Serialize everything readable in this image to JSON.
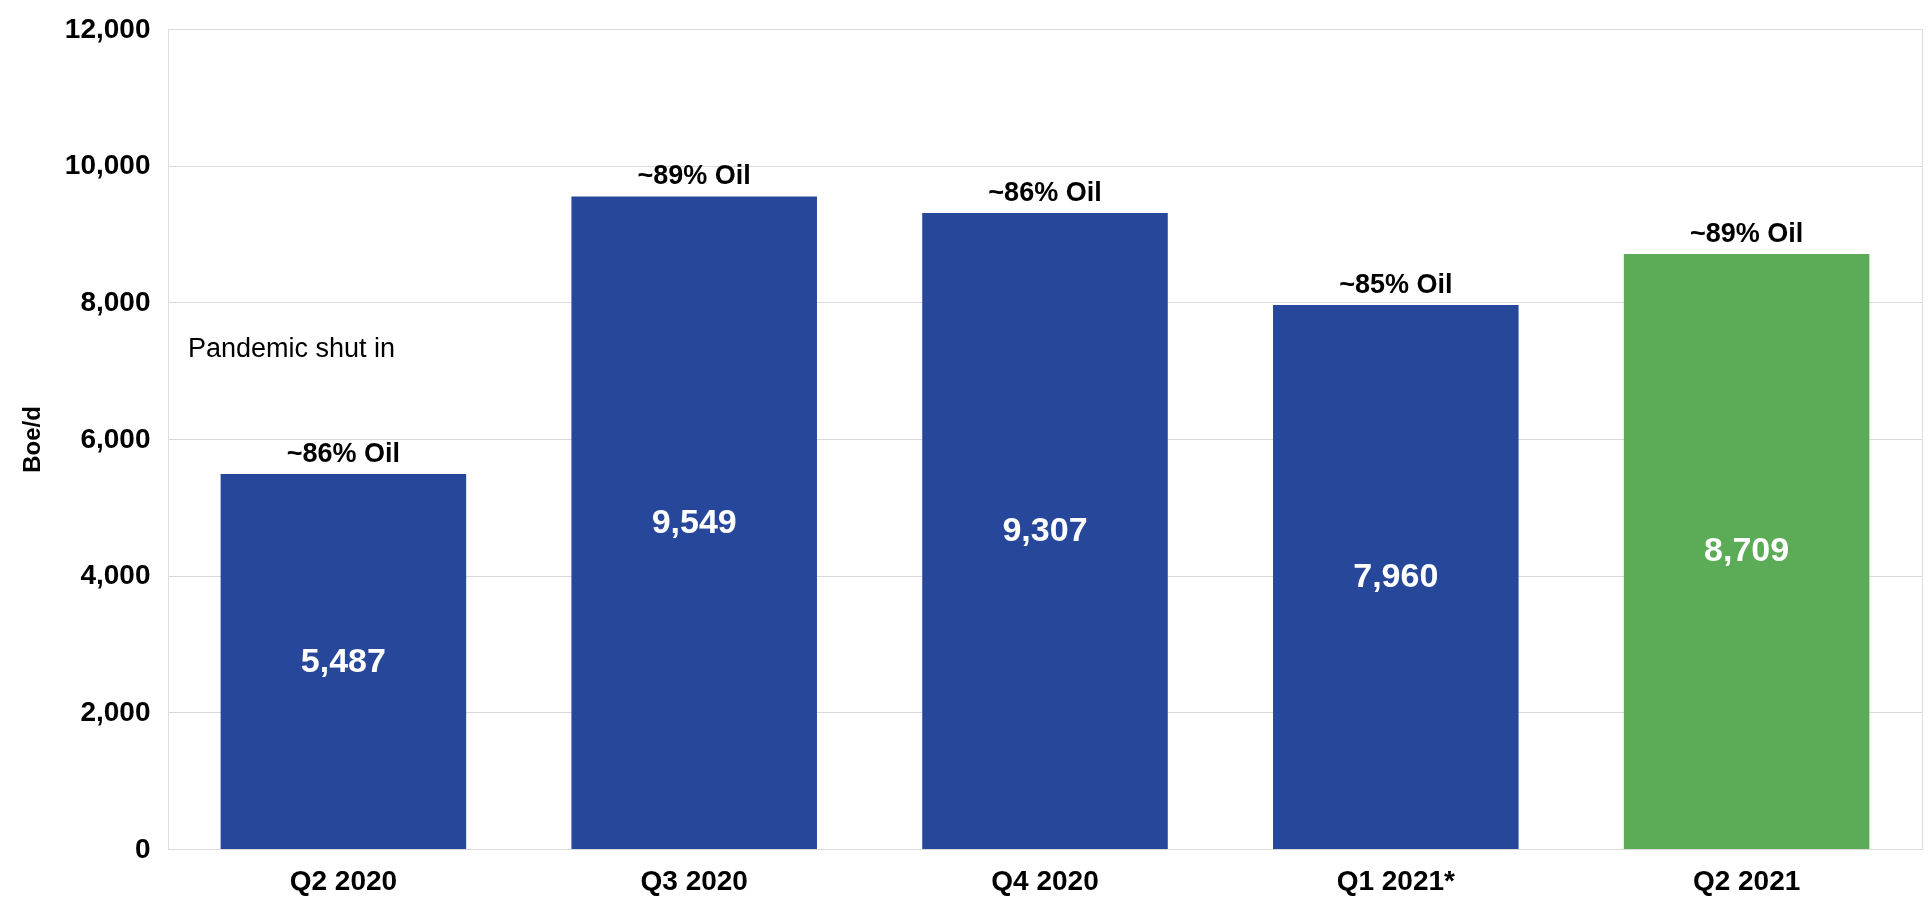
{
  "chart_data": {
    "type": "bar",
    "ylabel": "Boe/d",
    "categories": [
      "Q2 2020",
      "Q3 2020",
      "Q4 2020",
      "Q1 2021*",
      "Q2 2021"
    ],
    "values": [
      5487,
      9549,
      9307,
      7960,
      8709
    ],
    "colors": [
      "#27479a",
      "#27479a",
      "#27479a",
      "#27479a",
      "#5bab57"
    ],
    "value_labels": [
      "5,487",
      "9,549",
      "9,307",
      "7,960",
      "8,709"
    ],
    "ylim": [
      0,
      12000
    ],
    "yticks": [
      {
        "value": 0,
        "label": "0"
      },
      {
        "value": 2000,
        "label": "2,000"
      },
      {
        "value": 4000,
        "label": "4,000"
      },
      {
        "value": 6000,
        "label": "6,000"
      },
      {
        "value": 8000,
        "label": "8,000"
      },
      {
        "value": 10000,
        "label": "10,000"
      },
      {
        "value": 12000,
        "label": "12,000"
      }
    ],
    "grid": "y",
    "annotations": [
      {
        "text": "~86% Oil",
        "x": "Q2 2020",
        "y": 5487
      },
      {
        "text": "~89% Oil",
        "x": "Q3 2020",
        "y": 9549
      },
      {
        "text": "~86% Oil",
        "x": "Q4 2020",
        "y": 9307
      },
      {
        "text": "~85% Oil",
        "x": "Q1 2021*",
        "y": 7960
      },
      {
        "text": "~89% Oil",
        "x": "Q2 2021",
        "y": 8709
      },
      "Pandemic shut in"
    ]
  }
}
